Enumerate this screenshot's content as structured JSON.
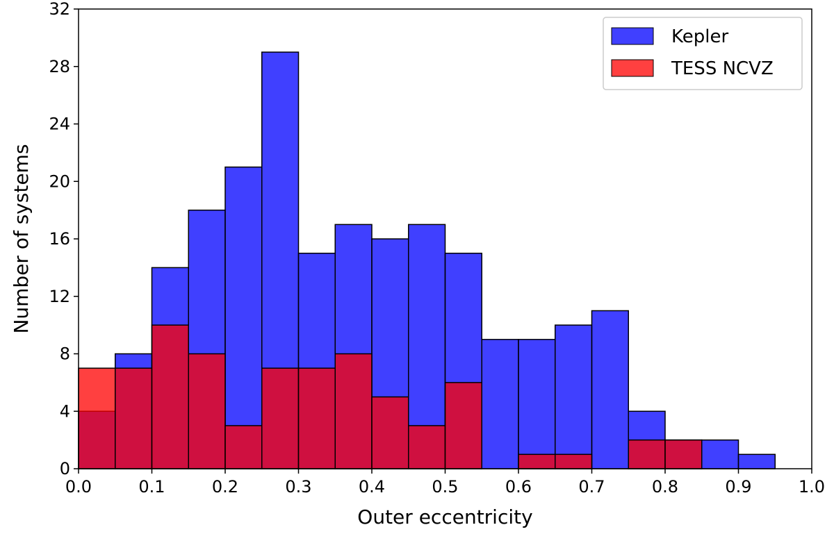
{
  "chart_data": {
    "type": "bar",
    "histogram": true,
    "bin_width": 0.05,
    "bin_starts": [
      0.0,
      0.05,
      0.1,
      0.15,
      0.2,
      0.25,
      0.3,
      0.35,
      0.4,
      0.45,
      0.5,
      0.55,
      0.6,
      0.65,
      0.7,
      0.75,
      0.8,
      0.85,
      0.9,
      0.95
    ],
    "series": [
      {
        "name": "Kepler",
        "color": "#0000ff",
        "opacity": 0.75,
        "values": [
          4,
          8,
          14,
          18,
          21,
          29,
          15,
          17,
          16,
          17,
          15,
          9,
          9,
          10,
          11,
          4,
          2,
          2,
          1,
          0
        ]
      },
      {
        "name": "TESS NCVZ",
        "color": "#ff0000",
        "opacity": 0.75,
        "values": [
          7,
          7,
          10,
          8,
          3,
          7,
          7,
          8,
          5,
          3,
          6,
          0,
          1,
          1,
          0,
          2,
          2,
          0,
          0,
          0
        ]
      }
    ],
    "xlabel": "Outer eccentricity",
    "ylabel": "Number of systems",
    "xlim": [
      0.0,
      1.0
    ],
    "ylim": [
      0,
      32
    ],
    "xticks": [
      "0.0",
      "0.1",
      "0.2",
      "0.3",
      "0.4",
      "0.5",
      "0.6",
      "0.7",
      "0.8",
      "0.9",
      "1.0"
    ],
    "yticks": [
      "0",
      "4",
      "8",
      "12",
      "16",
      "20",
      "24",
      "28",
      "32"
    ],
    "grid": false,
    "legend_position": "top-right"
  }
}
